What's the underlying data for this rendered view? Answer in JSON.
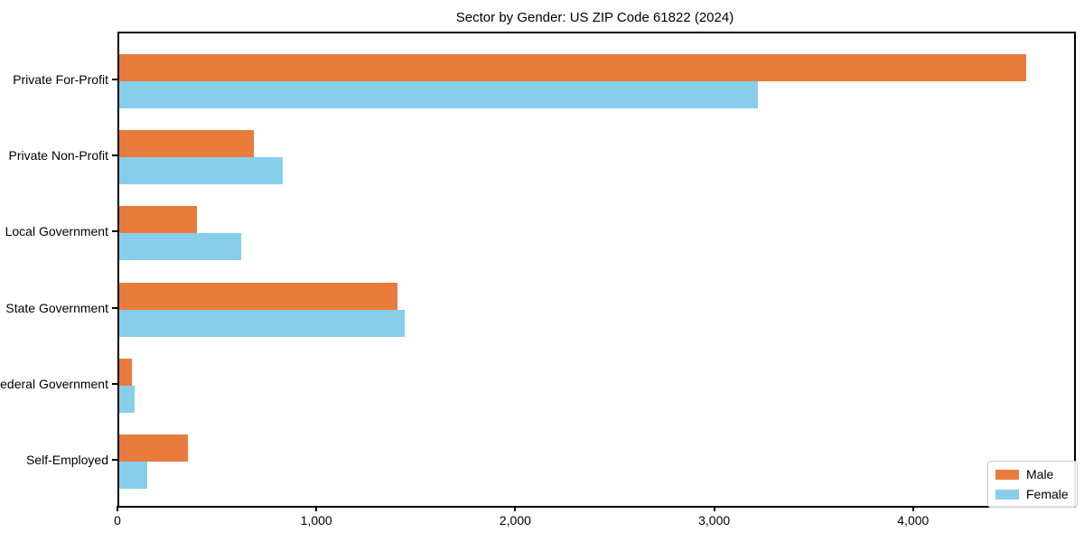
{
  "title": "Sector by Gender: US ZIP Code 61822 (2024)",
  "legend": {
    "items": [
      {
        "label": "Male",
        "color": "#e97b3d"
      },
      {
        "label": "Female",
        "color": "#87ceeb"
      }
    ]
  },
  "chart_data": {
    "type": "bar",
    "orientation": "horizontal",
    "title": "Sector by Gender: US ZIP Code 61822 (2024)",
    "categories": [
      "Private For-Profit",
      "Private Non-Profit",
      "Local Government",
      "State Government",
      "Federal Government",
      "Self-Employed"
    ],
    "series": [
      {
        "name": "Male",
        "color": "#e97b3d",
        "values": [
          4560,
          675,
          390,
          1400,
          65,
          347
        ]
      },
      {
        "name": "Female",
        "color": "#87ceeb",
        "values": [
          3210,
          820,
          615,
          1435,
          78,
          142
        ]
      }
    ],
    "xlabel": "",
    "ylabel": "",
    "xlim": [
      0,
      4800
    ],
    "xticks": [
      0,
      1000,
      2000,
      3000,
      4000
    ],
    "xtick_labels": [
      "0",
      "1,000",
      "2,000",
      "3,000",
      "4,000"
    ],
    "grid": false,
    "legend_position": "lower right"
  }
}
